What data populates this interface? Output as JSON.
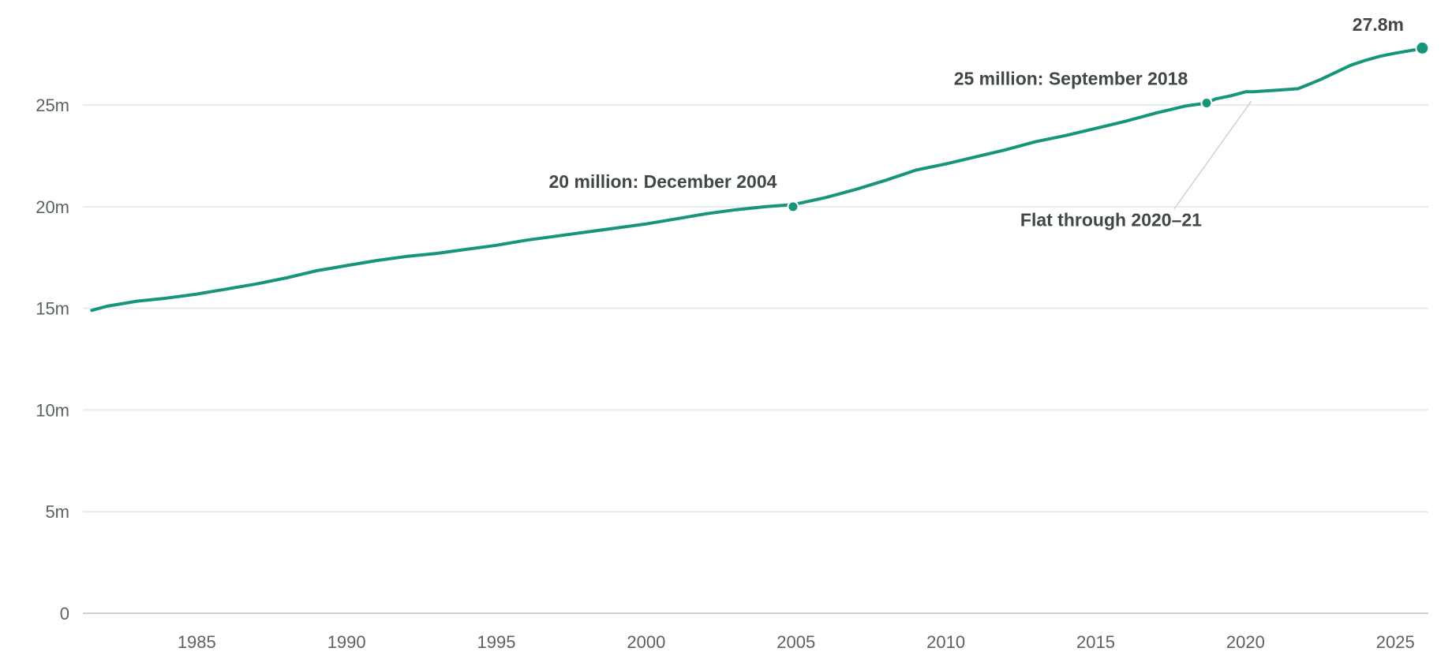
{
  "chart_data": {
    "type": "line",
    "title": "",
    "xlabel": "",
    "ylabel": "",
    "xlim": [
      1981.2,
      2026.1
    ],
    "ylim": [
      0,
      29
    ],
    "yticks": [
      {
        "value": 0,
        "label": "0"
      },
      {
        "value": 5,
        "label": "5m"
      },
      {
        "value": 10,
        "label": "10m"
      },
      {
        "value": 15,
        "label": "15m"
      },
      {
        "value": 20,
        "label": "20m"
      },
      {
        "value": 25,
        "label": "25m"
      }
    ],
    "xticks": [
      {
        "value": 1985,
        "label": "1985"
      },
      {
        "value": 1990,
        "label": "1990"
      },
      {
        "value": 1995,
        "label": "1995"
      },
      {
        "value": 2000,
        "label": "2000"
      },
      {
        "value": 2005,
        "label": "2005"
      },
      {
        "value": 2010,
        "label": "2010"
      },
      {
        "value": 2015,
        "label": "2015"
      },
      {
        "value": 2020,
        "label": "2020"
      },
      {
        "value": 2025,
        "label": "2025"
      }
    ],
    "grid": true,
    "color": "#17957a",
    "series": [
      {
        "x": [
          1981.5,
          1982,
          1983,
          1984,
          1985,
          1986,
          1987,
          1988,
          1989,
          1990,
          1991,
          1992,
          1993,
          1994,
          1995,
          1996,
          1997,
          1998,
          1999,
          2000,
          2001,
          2002,
          2003,
          2004,
          2004.9,
          2006,
          2007,
          2008,
          2009,
          2010,
          2011,
          2012,
          2013,
          2014,
          2015,
          2016,
          2017,
          2018,
          2018.7,
          2019,
          2019.5,
          2020,
          2020.25,
          2020.75,
          2021.25,
          2021.75,
          2022,
          2022.5,
          2023,
          2023.5,
          2024,
          2024.5,
          2025,
          2026
        ],
        "y": [
          14.9,
          15.1,
          15.35,
          15.5,
          15.7,
          15.95,
          16.2,
          16.5,
          16.85,
          17.1,
          17.35,
          17.55,
          17.7,
          17.9,
          18.1,
          18.35,
          18.55,
          18.75,
          18.95,
          19.15,
          19.4,
          19.65,
          19.85,
          20.0,
          20.1,
          20.45,
          20.85,
          21.3,
          21.8,
          22.1,
          22.45,
          22.8,
          23.2,
          23.5,
          23.85,
          24.2,
          24.6,
          24.95,
          25.1,
          25.3,
          25.45,
          25.65,
          25.65,
          25.7,
          25.75,
          25.8,
          25.95,
          26.25,
          26.6,
          26.95,
          27.2,
          27.4,
          27.55,
          27.8
        ]
      }
    ],
    "annotations": [
      {
        "x": 2004.9,
        "y": 20.0,
        "label": "20 million: December 2004"
      },
      {
        "x": 2018.7,
        "y": 25.1,
        "label": "25 million: September 2018"
      },
      {
        "x": 2025.9,
        "y": 27.8,
        "label": "27.8m"
      },
      {
        "label": "Flat through 2020–21",
        "x": 2020.2,
        "y": 25.4
      }
    ]
  }
}
